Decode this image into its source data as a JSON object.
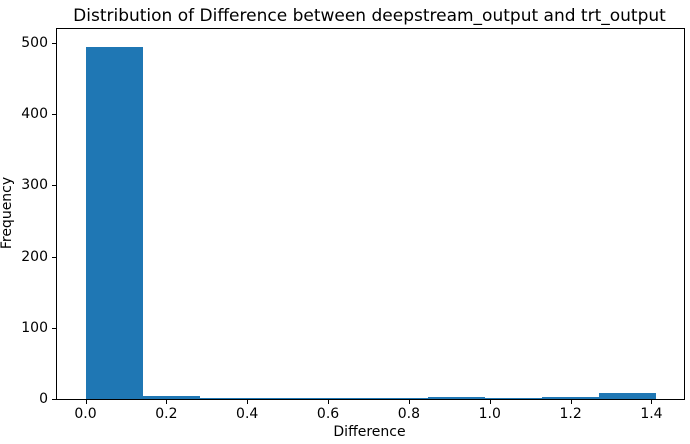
{
  "figure": {
    "background": "#ffffff"
  },
  "chart_data": {
    "type": "bar",
    "subtype": "histogram",
    "title": "Distribution of Difference between deepstream_output and trt_output",
    "xlabel": "Difference",
    "ylabel": "Frequency",
    "bar_color": "#1f77b4",
    "axis_color": "#000000",
    "bin_edges": [
      0.0,
      0.141,
      0.282,
      0.423,
      0.564,
      0.705,
      0.846,
      0.987,
      1.128,
      1.269,
      1.41
    ],
    "counts": [
      495,
      4,
      1,
      1,
      2,
      2,
      3,
      1,
      3,
      8
    ],
    "xlim": [
      -0.0705,
      1.4805
    ],
    "ylim": [
      0,
      519.75
    ],
    "xticks": [
      0.0,
      0.2,
      0.4,
      0.6,
      0.8,
      1.0,
      1.2,
      1.4
    ],
    "xtick_labels": [
      "0.0",
      "0.2",
      "0.4",
      "0.6",
      "0.8",
      "1.0",
      "1.2",
      "1.4"
    ],
    "yticks": [
      0,
      100,
      200,
      300,
      400,
      500
    ],
    "ytick_labels": [
      "0",
      "100",
      "200",
      "300",
      "400",
      "500"
    ],
    "grid": false,
    "legend": null
  }
}
